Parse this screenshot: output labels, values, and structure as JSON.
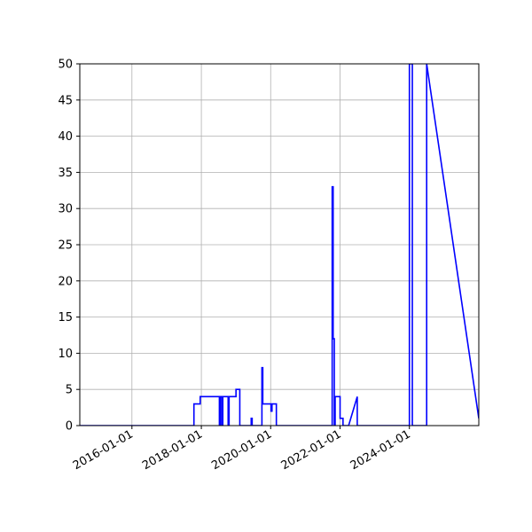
{
  "chart_data": {
    "type": "line",
    "title": "",
    "xlabel": "",
    "ylabel": "",
    "xlim": [
      "2014-07-01",
      "2026-01-01"
    ],
    "ylim": [
      0,
      50
    ],
    "grid": true,
    "legend": "none",
    "x_ticks": [
      "2016-01-01",
      "2018-01-01",
      "2020-01-01",
      "2022-01-01",
      "2024-01-01"
    ],
    "y_ticks": [
      "0",
      "5",
      "10",
      "15",
      "20",
      "25",
      "30",
      "35",
      "40",
      "45",
      "50"
    ],
    "series": [
      {
        "color": "#0000ff",
        "x": [
          "2014-07-01",
          "2017-10-15",
          "2017-10-15",
          "2017-12-20",
          "2017-12-20",
          "2018-01-10",
          "2018-01-10",
          "2018-07-10",
          "2018-07-10",
          "2018-07-20",
          "2018-07-20",
          "2018-08-05",
          "2018-08-05",
          "2018-08-15",
          "2018-08-15",
          "2018-10-10",
          "2018-10-10",
          "2018-10-20",
          "2018-10-20",
          "2019-01-01",
          "2019-01-01",
          "2019-02-10",
          "2019-02-10",
          "2019-02-20",
          "2019-02-20",
          "2019-06-10",
          "2019-06-10",
          "2019-06-20",
          "2019-06-20",
          "2019-10-01",
          "2019-10-01",
          "2019-10-10",
          "2019-10-10",
          "2020-01-05",
          "2020-01-05",
          "2020-01-15",
          "2020-01-15",
          "2020-03-01",
          "2020-03-01",
          "2021-10-10",
          "2021-10-10",
          "2021-10-20",
          "2021-10-20",
          "2021-11-01",
          "2021-11-01",
          "2021-11-10",
          "2021-11-10",
          "2022-01-01",
          "2022-01-01",
          "2022-01-10",
          "2022-01-10",
          "2022-02-01",
          "2022-02-01",
          "2022-04-01",
          "2022-04-01",
          "2022-07-01",
          "2022-07-01",
          "2024-01-01",
          "2024-01-01",
          "2024-02-01",
          "2024-02-01",
          "2024-07-01",
          "2024-07-01",
          "2026-01-01"
        ],
        "y": [
          0,
          0,
          3,
          3,
          4,
          4,
          4,
          4,
          0,
          0,
          4,
          4,
          0,
          0,
          4,
          4,
          0,
          0,
          4,
          4,
          5,
          5,
          0,
          0,
          0,
          0,
          1,
          1,
          0,
          0,
          8,
          8,
          3,
          3,
          2,
          2,
          3,
          3,
          0,
          0,
          33,
          33,
          12,
          12,
          0,
          0,
          4,
          4,
          1,
          1,
          1,
          1,
          0,
          0,
          0,
          4,
          0,
          0,
          50,
          50,
          0,
          0,
          50,
          1
        ]
      }
    ]
  }
}
